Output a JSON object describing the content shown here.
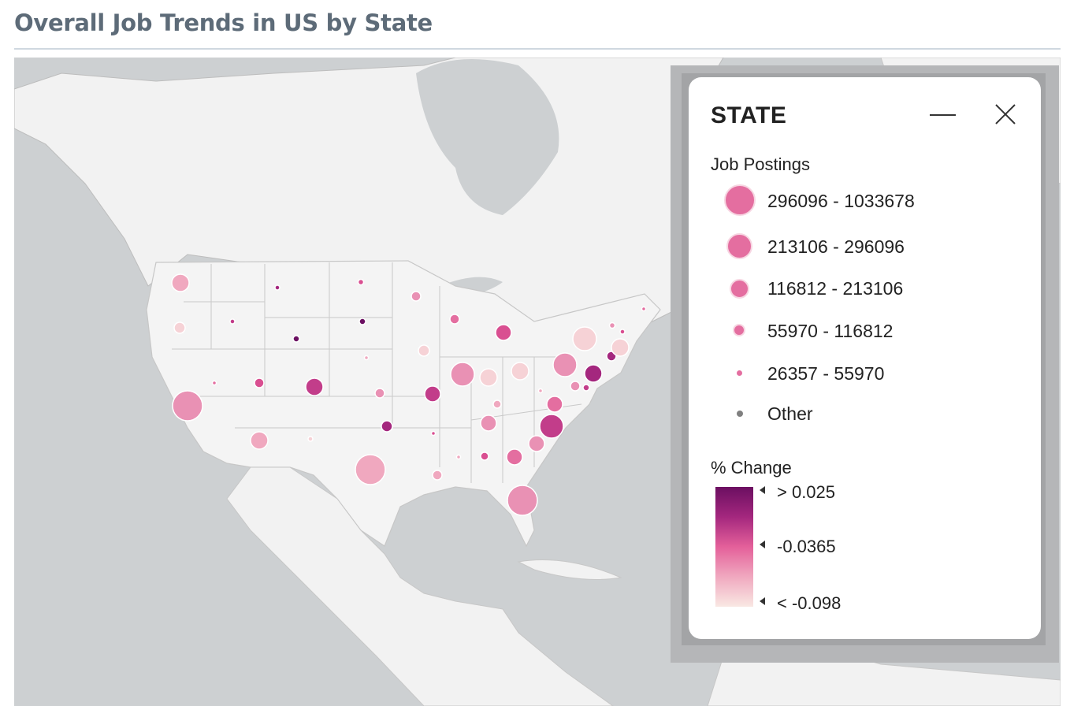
{
  "title": "Overall Job Trends in US by State",
  "legend": {
    "title": "STATE",
    "size_label": "Job Postings",
    "size_ranges": [
      "296096 - 1033678",
      "213106 - 296096",
      "116812 - 213106",
      "55970 - 116812",
      "26357 - 55970",
      "Other"
    ],
    "color_label": "% Change",
    "color_ticks": [
      "> 0.025",
      "-0.0365",
      "< -0.098"
    ],
    "colors": {
      "high": "#6b0f61",
      "mid": "#e4609a",
      "low": "#f9e8e3",
      "bubble": "#e46ea0",
      "other": "#808080"
    }
  },
  "buttons": {
    "minimize": "minimize-icon",
    "close": "close-icon"
  }
}
